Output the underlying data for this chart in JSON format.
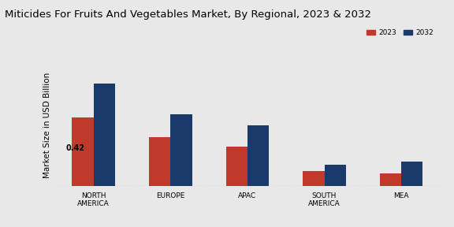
{
  "title": "Miticides For Fruits And Vegetables Market, By Regional, 2023 & 2032",
  "ylabel": "Market Size in USD Billion",
  "categories": [
    "NORTH\nAMERICA",
    "EUROPE",
    "APAC",
    "SOUTH\nAMERICA",
    "MEA"
  ],
  "values_2023": [
    0.42,
    0.3,
    0.24,
    0.09,
    0.08
  ],
  "values_2032": [
    0.63,
    0.44,
    0.37,
    0.13,
    0.15
  ],
  "color_2023": "#c0392b",
  "color_2032": "#1a3a6b",
  "annotation": "0.42",
  "background_color": "#e8e8e8",
  "legend_labels": [
    "2023",
    "2032"
  ],
  "bar_width": 0.28,
  "title_fontsize": 9.5,
  "axis_fontsize": 7.5,
  "tick_fontsize": 6.5
}
